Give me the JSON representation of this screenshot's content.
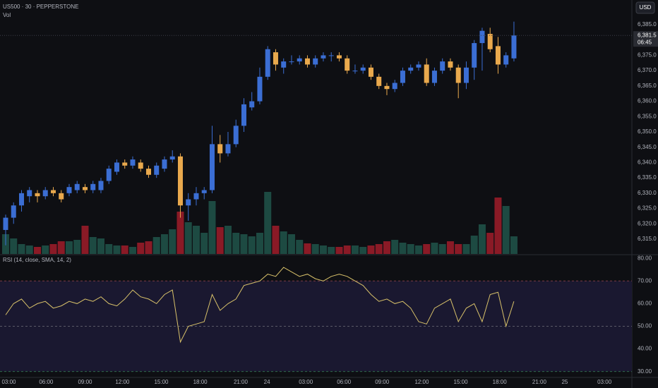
{
  "chart_data": [
    {
      "type": "candlestick",
      "title": "US500 · 30 · PEPPERSTONE",
      "subtitle": "Vol",
      "currency": "USD",
      "last_label": "6,381.5",
      "countdown": "06:45",
      "up_color": "#3b6ed4",
      "down_color": "#e9a94d",
      "volume_up_color": "#1d4a42",
      "volume_down_color": "#8a1a26",
      "xlim": [
        -0.71,
        78.85
      ],
      "xticks": [
        {
          "value": 0.4,
          "label": "03:00"
        },
        {
          "value": 5.1,
          "label": "06:00"
        },
        {
          "value": 10,
          "label": "09:00"
        },
        {
          "value": 14.7,
          "label": "12:00"
        },
        {
          "value": 19.6,
          "label": "15:00"
        },
        {
          "value": 24.5,
          "label": "18:00"
        },
        {
          "value": 29.6,
          "label": "21:00"
        },
        {
          "value": 32.9,
          "label": "24"
        },
        {
          "value": 37.8,
          "label": "03:00"
        },
        {
          "value": 42.6,
          "label": "06:00"
        },
        {
          "value": 47.4,
          "label": "09:00"
        },
        {
          "value": 52.4,
          "label": "12:00"
        },
        {
          "value": 57.3,
          "label": "15:00"
        },
        {
          "value": 62.2,
          "label": "18:00"
        },
        {
          "value": 67.2,
          "label": "21:00"
        },
        {
          "value": 70.4,
          "label": "25"
        },
        {
          "value": 75.4,
          "label": "03:00"
        }
      ],
      "ylim": [
        6310.16,
        6393.06
      ],
      "yticks": [
        {
          "value": 6315,
          "label": "6,315.0"
        },
        {
          "value": 6320,
          "label": "6,320.0"
        },
        {
          "value": 6325,
          "label": "6,325.0"
        },
        {
          "value": 6330,
          "label": "6,330.0"
        },
        {
          "value": 6335,
          "label": "6,335.0"
        },
        {
          "value": 6340,
          "label": "6,340.0"
        },
        {
          "value": 6345,
          "label": "6,345.0"
        },
        {
          "value": 6350,
          "label": "6,350.0"
        },
        {
          "value": 6355,
          "label": "6,355.0"
        },
        {
          "value": 6360,
          "label": "6,360.0"
        },
        {
          "value": 6365,
          "label": "6,365.0"
        },
        {
          "value": 6370,
          "label": "6,370.0"
        },
        {
          "value": 6375,
          "label": "6,375.0"
        },
        {
          "value": 6380,
          "label": "6,380.0"
        },
        {
          "value": 6385,
          "label": "6,385.0"
        }
      ],
      "open": [
        6318,
        6322,
        6326,
        6329,
        6330,
        6329,
        6331,
        6330,
        6330,
        6331,
        6332,
        6331,
        6331,
        6334,
        6337,
        6340,
        6339,
        6340,
        6338,
        6336,
        6338,
        6341,
        6342,
        6326,
        6328,
        6330,
        6331,
        6346,
        6343,
        6346,
        6352,
        6358,
        6360,
        6368,
        6376,
        6371,
        6373,
        6373,
        6374,
        6372,
        6374,
        6375,
        6375,
        6374,
        6370,
        6370,
        6371,
        6368,
        6365,
        6364,
        6366,
        6370,
        6371,
        6372,
        6366,
        6370,
        6373,
        6371,
        6366,
        6371,
        6379,
        6382,
        6378,
        6372,
        6374
      ],
      "high": [
        6323,
        6327,
        6331,
        6332,
        6331,
        6332,
        6332,
        6331,
        6333,
        6334,
        6333,
        6334,
        6335,
        6339,
        6341,
        6341,
        6342,
        6341,
        6339,
        6340,
        6342,
        6344,
        6343,
        6330,
        6332,
        6332,
        6352,
        6349,
        6350,
        6354,
        6361,
        6363,
        6371,
        6378,
        6377,
        6374,
        6375,
        6375,
        6375,
        6375,
        6376,
        6376,
        6376,
        6375,
        6372,
        6372,
        6372,
        6369,
        6366,
        6367,
        6371,
        6372,
        6373,
        6374,
        6371,
        6374,
        6374,
        6372,
        6373,
        6380,
        6384,
        6384,
        6381,
        6376,
        6386
      ],
      "low": [
        6313,
        6320,
        6324,
        6327,
        6327,
        6328,
        6329,
        6327,
        6329,
        6330,
        6330,
        6330,
        6330,
        6333,
        6336,
        6338,
        6338,
        6337,
        6335,
        6335,
        6337,
        6340,
        6322,
        6321,
        6326,
        6328,
        6330,
        6340,
        6342,
        6345,
        6350,
        6357,
        6359,
        6367,
        6370,
        6369,
        6372,
        6372,
        6371,
        6371,
        6373,
        6373,
        6373,
        6369,
        6369,
        6369,
        6367,
        6364,
        6362,
        6363,
        6365,
        6369,
        6370,
        6365,
        6365,
        6369,
        6370,
        6361,
        6364,
        6367,
        6370,
        6376,
        6369,
        6371,
        6373
      ],
      "close": [
        6322,
        6326,
        6330,
        6331,
        6329,
        6331,
        6330,
        6328,
        6332,
        6333,
        6331,
        6333,
        6334,
        6338,
        6340,
        6339,
        6341,
        6338,
        6336,
        6339,
        6341,
        6342,
        6326,
        6328,
        6330,
        6331,
        6346,
        6343,
        6346,
        6352,
        6359,
        6360,
        6368,
        6377,
        6372,
        6373,
        6373,
        6374,
        6372,
        6374,
        6375,
        6375,
        6374,
        6370,
        6370,
        6371,
        6368,
        6365,
        6364,
        6366,
        6370,
        6371,
        6372,
        6366,
        6370,
        6373,
        6371,
        6366,
        6371,
        6379,
        6383,
        6377,
        6372,
        6375,
        6381.5
      ],
      "volume_lim": [
        0,
        100
      ],
      "volume": [
        28,
        22,
        14,
        12,
        10,
        12,
        14,
        18,
        18,
        20,
        40,
        24,
        22,
        14,
        12,
        12,
        10,
        16,
        18,
        24,
        28,
        35,
        60,
        45,
        40,
        30,
        75,
        38,
        40,
        30,
        28,
        25,
        30,
        88,
        40,
        32,
        28,
        20,
        15,
        14,
        12,
        10,
        10,
        12,
        12,
        10,
        12,
        14,
        18,
        20,
        16,
        14,
        12,
        14,
        16,
        14,
        18,
        14,
        14,
        26,
        42,
        30,
        80,
        68,
        25
      ]
    },
    {
      "type": "line",
      "title": "RSI (14, close, SMA, 14, 2)",
      "color": "#d9c26a",
      "band_color": "#1a1830",
      "xlim": [
        -0.71,
        78.85
      ],
      "ylim": [
        27.4,
        81.3
      ],
      "yticks": [
        {
          "value": 80,
          "label": "80.00"
        },
        {
          "value": 70,
          "label": "70.00"
        },
        {
          "value": 60,
          "label": "60.00"
        },
        {
          "value": 50,
          "label": "50.00"
        },
        {
          "value": 40,
          "label": "40.00"
        },
        {
          "value": 30,
          "label": "30.00"
        }
      ],
      "band": [
        30,
        70
      ],
      "levels": [
        70,
        50,
        30
      ],
      "values": [
        55,
        60,
        62,
        58,
        60,
        61,
        58,
        59,
        61,
        60,
        62,
        61,
        63,
        60,
        59,
        62,
        66,
        63,
        62,
        60,
        64,
        66,
        43,
        50,
        51,
        52,
        64,
        57,
        60,
        62,
        68,
        69,
        70,
        73,
        72,
        76,
        74,
        72,
        73,
        71,
        70,
        72,
        73,
        72,
        70,
        68,
        64,
        61,
        62,
        60,
        61,
        58,
        52,
        51,
        58,
        60,
        62,
        52,
        58,
        60,
        52,
        64,
        65,
        50,
        61
      ]
    }
  ]
}
